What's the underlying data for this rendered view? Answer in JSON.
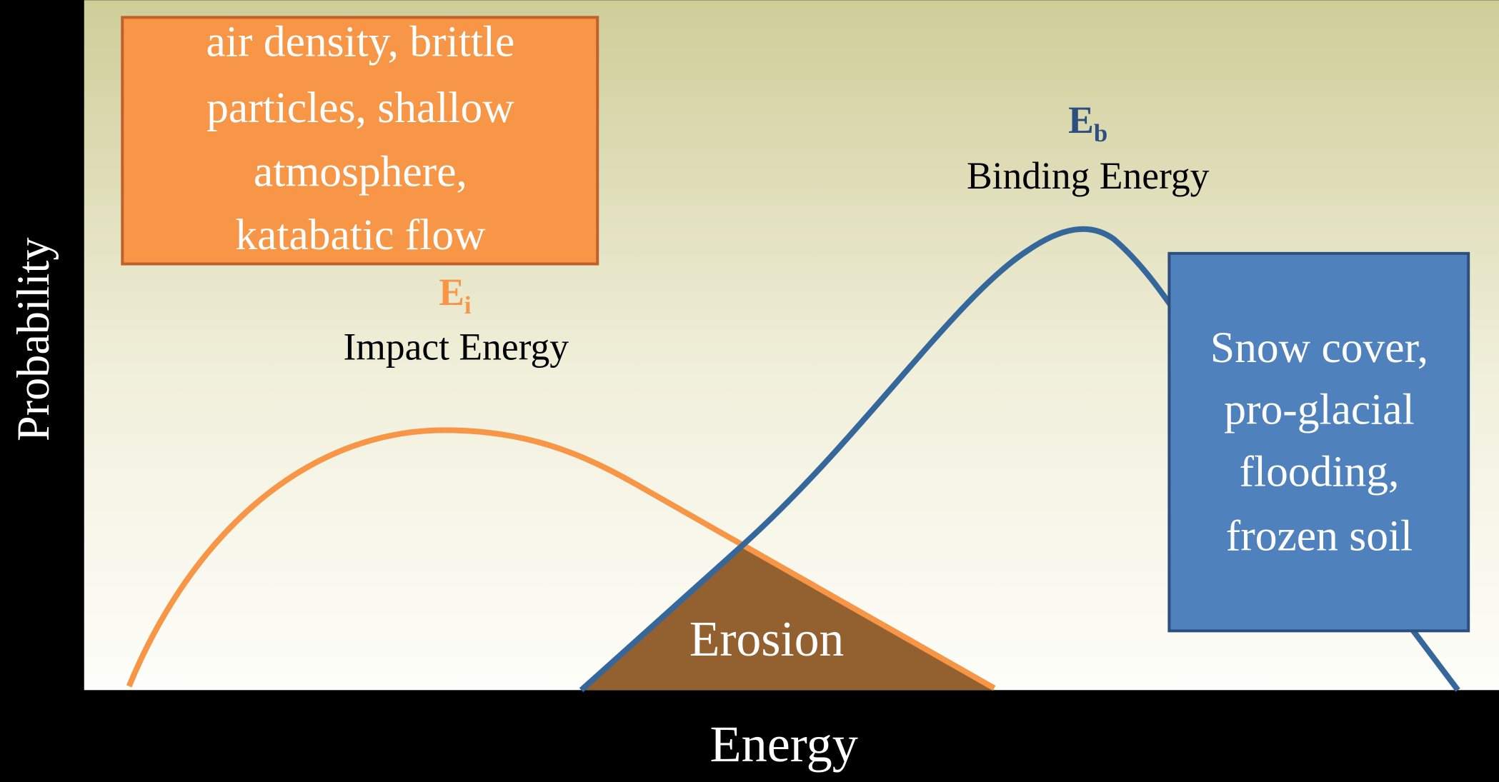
{
  "axes": {
    "y_label": "Probability",
    "x_label": "Energy"
  },
  "impact": {
    "symbol": "E",
    "subscript": "i",
    "label": "Impact Energy"
  },
  "binding": {
    "symbol": "E",
    "subscript": "b",
    "label": "Binding Energy"
  },
  "region": "Erosion",
  "boxes": [
    {
      "lines": [
        "air density, brittle",
        "particles, shallow",
        "atmosphere,",
        "katabatic flow"
      ]
    },
    {
      "lines": [
        "Snow cover,",
        "pro-glacial",
        "flooding,",
        "frozen soil"
      ]
    }
  ]
}
